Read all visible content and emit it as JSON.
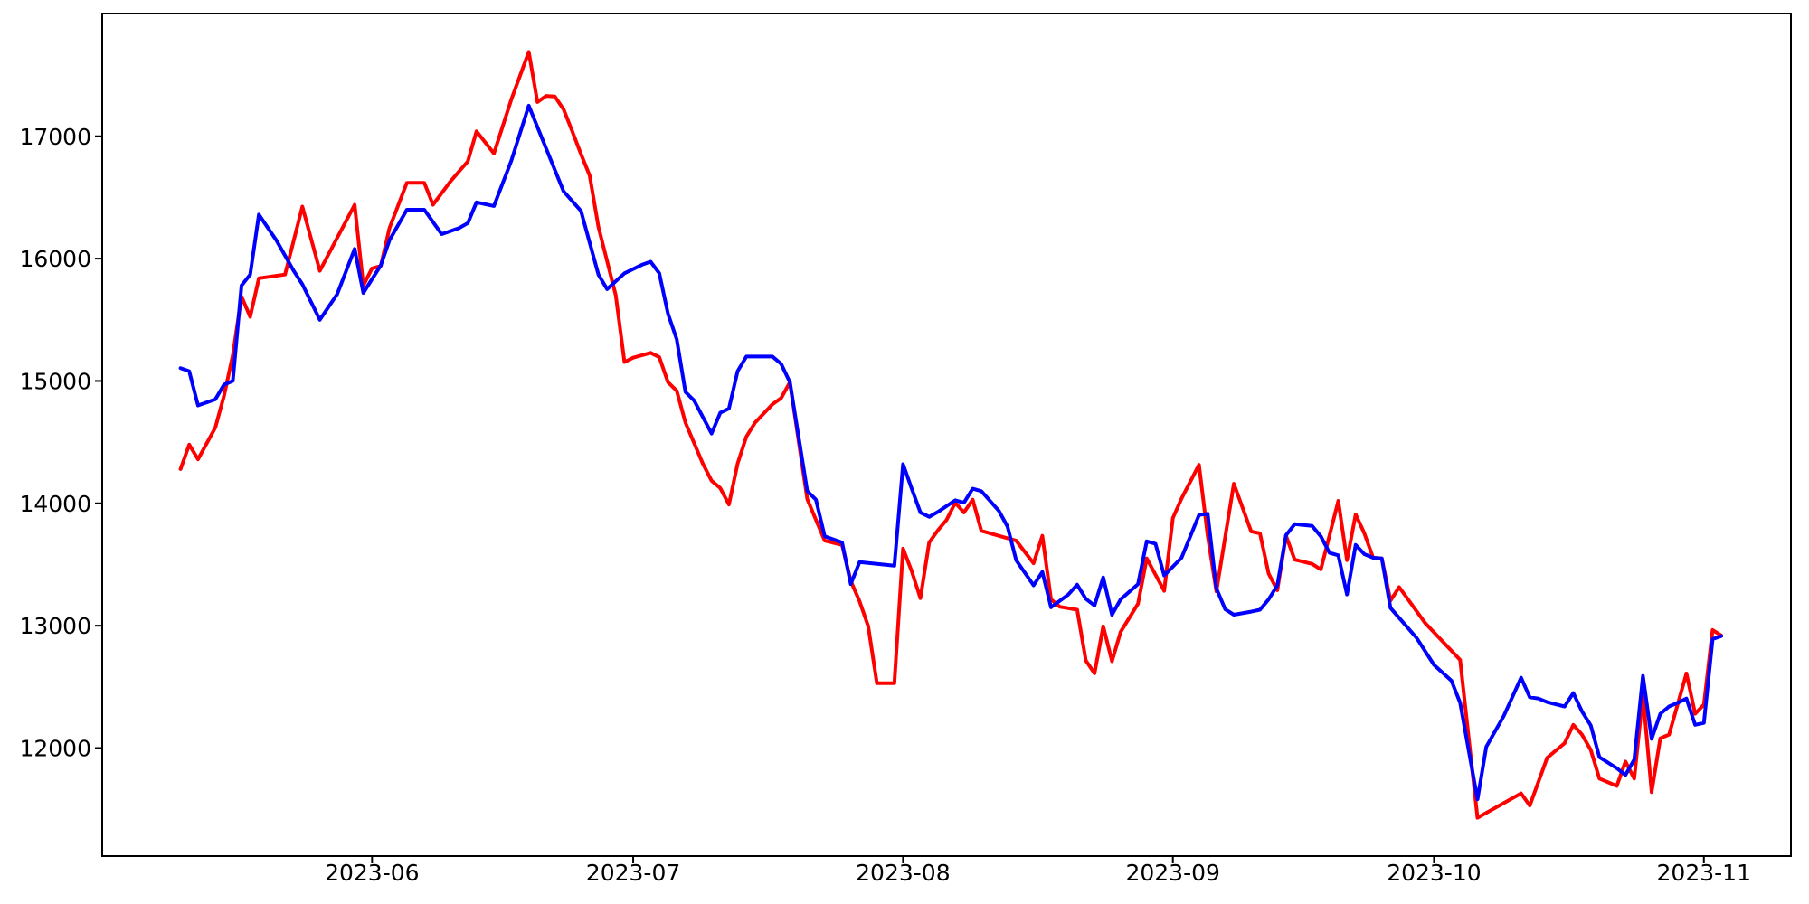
{
  "figure": {
    "background": "#ffffff",
    "title": ""
  },
  "chart_data": {
    "type": "line",
    "title": "",
    "xlabel": "",
    "ylabel": "",
    "grid": false,
    "legend": false,
    "background": "#ffffff",
    "spine_color": "#000000",
    "x_axis": {
      "scale": "date",
      "min": "2023-05-01",
      "max": "2023-11-11",
      "ticks": [
        {
          "date": "2023-06-01",
          "label": "2023-06"
        },
        {
          "date": "2023-07-01",
          "label": "2023-07"
        },
        {
          "date": "2023-08-01",
          "label": "2023-08"
        },
        {
          "date": "2023-09-01",
          "label": "2023-09"
        },
        {
          "date": "2023-10-01",
          "label": "2023-10"
        },
        {
          "date": "2023-11-01",
          "label": "2023-11"
        }
      ]
    },
    "y_axis": {
      "min": 11117,
      "max": 18003,
      "ticks": [
        {
          "value": 12000,
          "label": "12000"
        },
        {
          "value": 13000,
          "label": "13000"
        },
        {
          "value": 14000,
          "label": "14000"
        },
        {
          "value": 15000,
          "label": "15000"
        },
        {
          "value": 16000,
          "label": "16000"
        },
        {
          "value": 17000,
          "label": "17000"
        }
      ]
    },
    "series": [
      {
        "name": "red-series",
        "color": "#ff0000",
        "line_width": 4,
        "points": [
          [
            "2023-05-10",
            14280
          ],
          [
            "2023-05-11",
            14480
          ],
          [
            "2023-05-12",
            14360
          ],
          [
            "2023-05-14",
            14620
          ],
          [
            "2023-05-15",
            14880
          ],
          [
            "2023-05-16",
            15210
          ],
          [
            "2023-05-17",
            15690
          ],
          [
            "2023-05-18",
            15525
          ],
          [
            "2023-05-19",
            15840
          ],
          [
            "2023-05-22",
            15870
          ],
          [
            "2023-05-24",
            16425
          ],
          [
            "2023-05-26",
            15900
          ],
          [
            "2023-05-28",
            16170
          ],
          [
            "2023-05-30",
            16440
          ],
          [
            "2023-05-31",
            15780
          ],
          [
            "2023-06-01",
            15920
          ],
          [
            "2023-06-02",
            15940
          ],
          [
            "2023-06-03",
            16250
          ],
          [
            "2023-06-05",
            16620
          ],
          [
            "2023-06-07",
            16620
          ],
          [
            "2023-06-08",
            16440
          ],
          [
            "2023-06-10",
            16630
          ],
          [
            "2023-06-12",
            16795
          ],
          [
            "2023-06-13",
            17040
          ],
          [
            "2023-06-15",
            16860
          ],
          [
            "2023-06-17",
            17300
          ],
          [
            "2023-06-19",
            17690
          ],
          [
            "2023-06-20",
            17280
          ],
          [
            "2023-06-21",
            17330
          ],
          [
            "2023-06-22",
            17325
          ],
          [
            "2023-06-23",
            17220
          ],
          [
            "2023-06-24",
            17040
          ],
          [
            "2023-06-25",
            16855
          ],
          [
            "2023-06-26",
            16680
          ],
          [
            "2023-06-27",
            16260
          ],
          [
            "2023-06-29",
            15700
          ],
          [
            "2023-06-30",
            15155
          ],
          [
            "2023-07-01",
            15190
          ],
          [
            "2023-07-03",
            15230
          ],
          [
            "2023-07-04",
            15195
          ],
          [
            "2023-07-05",
            14990
          ],
          [
            "2023-07-06",
            14920
          ],
          [
            "2023-07-07",
            14660
          ],
          [
            "2023-07-09",
            14325
          ],
          [
            "2023-07-10",
            14185
          ],
          [
            "2023-07-11",
            14125
          ],
          [
            "2023-07-12",
            13990
          ],
          [
            "2023-07-13",
            14325
          ],
          [
            "2023-07-14",
            14545
          ],
          [
            "2023-07-15",
            14660
          ],
          [
            "2023-07-17",
            14810
          ],
          [
            "2023-07-18",
            14860
          ],
          [
            "2023-07-19",
            14990
          ],
          [
            "2023-07-21",
            14035
          ],
          [
            "2023-07-23",
            13695
          ],
          [
            "2023-07-25",
            13660
          ],
          [
            "2023-07-26",
            13365
          ],
          [
            "2023-07-27",
            13200
          ],
          [
            "2023-07-28",
            12995
          ],
          [
            "2023-07-29",
            12530
          ],
          [
            "2023-07-31",
            12530
          ],
          [
            "2023-08-01",
            13630
          ],
          [
            "2023-08-02",
            13445
          ],
          [
            "2023-08-03",
            13225
          ],
          [
            "2023-08-04",
            13680
          ],
          [
            "2023-08-05",
            13780
          ],
          [
            "2023-08-06",
            13865
          ],
          [
            "2023-08-07",
            14005
          ],
          [
            "2023-08-08",
            13925
          ],
          [
            "2023-08-09",
            14030
          ],
          [
            "2023-08-10",
            13775
          ],
          [
            "2023-08-12",
            13735
          ],
          [
            "2023-08-14",
            13695
          ],
          [
            "2023-08-16",
            13510
          ],
          [
            "2023-08-17",
            13735
          ],
          [
            "2023-08-18",
            13215
          ],
          [
            "2023-08-19",
            13155
          ],
          [
            "2023-08-21",
            13130
          ],
          [
            "2023-08-22",
            12715
          ],
          [
            "2023-08-23",
            12610
          ],
          [
            "2023-08-24",
            12995
          ],
          [
            "2023-08-25",
            12710
          ],
          [
            "2023-08-26",
            12950
          ],
          [
            "2023-08-28",
            13180
          ],
          [
            "2023-08-29",
            13550
          ],
          [
            "2023-08-31",
            13285
          ],
          [
            "2023-09-01",
            13880
          ],
          [
            "2023-09-02",
            14040
          ],
          [
            "2023-09-04",
            14315
          ],
          [
            "2023-09-05",
            13735
          ],
          [
            "2023-09-06",
            13280
          ],
          [
            "2023-09-08",
            14160
          ],
          [
            "2023-09-10",
            13770
          ],
          [
            "2023-09-11",
            13755
          ],
          [
            "2023-09-12",
            13425
          ],
          [
            "2023-09-13",
            13290
          ],
          [
            "2023-09-14",
            13735
          ],
          [
            "2023-09-15",
            13540
          ],
          [
            "2023-09-17",
            13505
          ],
          [
            "2023-09-18",
            13460
          ],
          [
            "2023-09-20",
            14020
          ],
          [
            "2023-09-21",
            13535
          ],
          [
            "2023-09-22",
            13910
          ],
          [
            "2023-09-23",
            13755
          ],
          [
            "2023-09-24",
            13555
          ],
          [
            "2023-09-25",
            13550
          ],
          [
            "2023-09-26",
            13205
          ],
          [
            "2023-09-27",
            13315
          ],
          [
            "2023-09-30",
            13020
          ],
          [
            "2023-10-04",
            12720
          ],
          [
            "2023-10-06",
            11430
          ],
          [
            "2023-10-11",
            11630
          ],
          [
            "2023-10-12",
            11530
          ],
          [
            "2023-10-14",
            11920
          ],
          [
            "2023-10-16",
            12040
          ],
          [
            "2023-10-17",
            12190
          ],
          [
            "2023-10-18",
            12110
          ],
          [
            "2023-10-19",
            11985
          ],
          [
            "2023-10-20",
            11750
          ],
          [
            "2023-10-22",
            11690
          ],
          [
            "2023-10-23",
            11890
          ],
          [
            "2023-10-24",
            11750
          ],
          [
            "2023-10-25",
            12435
          ],
          [
            "2023-10-26",
            11640
          ],
          [
            "2023-10-27",
            12080
          ],
          [
            "2023-10-28",
            12110
          ],
          [
            "2023-10-29",
            12360
          ],
          [
            "2023-10-30",
            12610
          ],
          [
            "2023-10-31",
            12280
          ],
          [
            "2023-11-01",
            12355
          ],
          [
            "2023-11-02",
            12965
          ],
          [
            "2023-11-03",
            12920
          ]
        ]
      },
      {
        "name": "blue-series",
        "color": "#0000ff",
        "line_width": 4,
        "points": [
          [
            "2023-05-10",
            15105
          ],
          [
            "2023-05-11",
            15080
          ],
          [
            "2023-05-12",
            14800
          ],
          [
            "2023-05-14",
            14850
          ],
          [
            "2023-05-15",
            14970
          ],
          [
            "2023-05-16",
            15000
          ],
          [
            "2023-05-17",
            15780
          ],
          [
            "2023-05-18",
            15870
          ],
          [
            "2023-05-19",
            16360
          ],
          [
            "2023-05-21",
            16150
          ],
          [
            "2023-05-23",
            15900
          ],
          [
            "2023-05-24",
            15790
          ],
          [
            "2023-05-26",
            15500
          ],
          [
            "2023-05-28",
            15710
          ],
          [
            "2023-05-30",
            16080
          ],
          [
            "2023-05-31",
            15720
          ],
          [
            "2023-06-02",
            15945
          ],
          [
            "2023-06-03",
            16150
          ],
          [
            "2023-06-05",
            16400
          ],
          [
            "2023-06-07",
            16400
          ],
          [
            "2023-06-09",
            16200
          ],
          [
            "2023-06-11",
            16250
          ],
          [
            "2023-06-12",
            16290
          ],
          [
            "2023-06-13",
            16460
          ],
          [
            "2023-06-15",
            16430
          ],
          [
            "2023-06-17",
            16800
          ],
          [
            "2023-06-19",
            17250
          ],
          [
            "2023-06-21",
            16900
          ],
          [
            "2023-06-23",
            16550
          ],
          [
            "2023-06-25",
            16390
          ],
          [
            "2023-06-27",
            15870
          ],
          [
            "2023-06-28",
            15750
          ],
          [
            "2023-06-30",
            15880
          ],
          [
            "2023-07-02",
            15950
          ],
          [
            "2023-07-03",
            15975
          ],
          [
            "2023-07-04",
            15880
          ],
          [
            "2023-07-05",
            15550
          ],
          [
            "2023-07-06",
            15340
          ],
          [
            "2023-07-07",
            14910
          ],
          [
            "2023-07-08",
            14840
          ],
          [
            "2023-07-10",
            14570
          ],
          [
            "2023-07-11",
            14740
          ],
          [
            "2023-07-12",
            14775
          ],
          [
            "2023-07-13",
            15080
          ],
          [
            "2023-07-14",
            15200
          ],
          [
            "2023-07-17",
            15200
          ],
          [
            "2023-07-18",
            15140
          ],
          [
            "2023-07-19",
            14990
          ],
          [
            "2023-07-21",
            14100
          ],
          [
            "2023-07-22",
            14030
          ],
          [
            "2023-07-23",
            13730
          ],
          [
            "2023-07-25",
            13680
          ],
          [
            "2023-07-26",
            13340
          ],
          [
            "2023-07-27",
            13520
          ],
          [
            "2023-07-31",
            13490
          ],
          [
            "2023-08-01",
            14320
          ],
          [
            "2023-08-02",
            14120
          ],
          [
            "2023-08-03",
            13925
          ],
          [
            "2023-08-04",
            13890
          ],
          [
            "2023-08-05",
            13930
          ],
          [
            "2023-08-07",
            14025
          ],
          [
            "2023-08-08",
            14005
          ],
          [
            "2023-08-09",
            14120
          ],
          [
            "2023-08-10",
            14100
          ],
          [
            "2023-08-12",
            13940
          ],
          [
            "2023-08-13",
            13810
          ],
          [
            "2023-08-14",
            13535
          ],
          [
            "2023-08-16",
            13330
          ],
          [
            "2023-08-17",
            13440
          ],
          [
            "2023-08-18",
            13150
          ],
          [
            "2023-08-20",
            13255
          ],
          [
            "2023-08-21",
            13335
          ],
          [
            "2023-08-22",
            13220
          ],
          [
            "2023-08-23",
            13165
          ],
          [
            "2023-08-24",
            13395
          ],
          [
            "2023-08-25",
            13090
          ],
          [
            "2023-08-26",
            13215
          ],
          [
            "2023-08-28",
            13340
          ],
          [
            "2023-08-29",
            13690
          ],
          [
            "2023-08-30",
            13670
          ],
          [
            "2023-08-31",
            13410
          ],
          [
            "2023-09-02",
            13555
          ],
          [
            "2023-09-04",
            13905
          ],
          [
            "2023-09-05",
            13915
          ],
          [
            "2023-09-06",
            13305
          ],
          [
            "2023-09-07",
            13135
          ],
          [
            "2023-09-08",
            13090
          ],
          [
            "2023-09-10",
            13115
          ],
          [
            "2023-09-11",
            13130
          ],
          [
            "2023-09-12",
            13215
          ],
          [
            "2023-09-13",
            13330
          ],
          [
            "2023-09-14",
            13740
          ],
          [
            "2023-09-15",
            13830
          ],
          [
            "2023-09-17",
            13815
          ],
          [
            "2023-09-18",
            13730
          ],
          [
            "2023-09-19",
            13595
          ],
          [
            "2023-09-20",
            13575
          ],
          [
            "2023-09-21",
            13255
          ],
          [
            "2023-09-22",
            13660
          ],
          [
            "2023-09-23",
            13585
          ],
          [
            "2023-09-24",
            13555
          ],
          [
            "2023-09-25",
            13550
          ],
          [
            "2023-09-26",
            13145
          ],
          [
            "2023-09-29",
            12900
          ],
          [
            "2023-10-01",
            12680
          ],
          [
            "2023-10-03",
            12550
          ],
          [
            "2023-10-04",
            12370
          ],
          [
            "2023-10-06",
            11580
          ],
          [
            "2023-10-07",
            12010
          ],
          [
            "2023-10-09",
            12260
          ],
          [
            "2023-10-11",
            12575
          ],
          [
            "2023-10-12",
            12415
          ],
          [
            "2023-10-13",
            12405
          ],
          [
            "2023-10-14",
            12375
          ],
          [
            "2023-10-16",
            12340
          ],
          [
            "2023-10-17",
            12450
          ],
          [
            "2023-10-18",
            12300
          ],
          [
            "2023-10-19",
            12185
          ],
          [
            "2023-10-20",
            11925
          ],
          [
            "2023-10-22",
            11835
          ],
          [
            "2023-10-23",
            11780
          ],
          [
            "2023-10-24",
            11905
          ],
          [
            "2023-10-25",
            12590
          ],
          [
            "2023-10-26",
            12075
          ],
          [
            "2023-10-27",
            12280
          ],
          [
            "2023-10-28",
            12340
          ],
          [
            "2023-10-29",
            12370
          ],
          [
            "2023-10-30",
            12405
          ],
          [
            "2023-10-31",
            12190
          ],
          [
            "2023-11-01",
            12205
          ],
          [
            "2023-11-02",
            12890
          ],
          [
            "2023-11-03",
            12915
          ]
        ]
      }
    ]
  }
}
